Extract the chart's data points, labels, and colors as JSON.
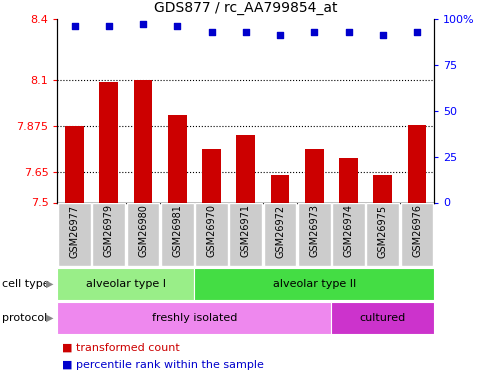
{
  "title": "GDS877 / rc_AA799854_at",
  "samples": [
    "GSM26977",
    "GSM26979",
    "GSM26980",
    "GSM26981",
    "GSM26970",
    "GSM26971",
    "GSM26972",
    "GSM26973",
    "GSM26974",
    "GSM26975",
    "GSM26976"
  ],
  "bar_values": [
    7.875,
    8.09,
    8.1,
    7.93,
    7.76,
    7.83,
    7.635,
    7.76,
    7.72,
    7.635,
    7.88
  ],
  "percentile_values": [
    96,
    96,
    97,
    96,
    93,
    93,
    91,
    93,
    93,
    91,
    93
  ],
  "ymin": 7.5,
  "ymax": 8.4,
  "y_ticks": [
    7.5,
    7.65,
    7.875,
    8.1,
    8.4
  ],
  "y_tick_labels": [
    "7.5",
    "7.65",
    "7.875",
    "8.1",
    "8.4"
  ],
  "y2min": 0,
  "y2max": 100,
  "y2_ticks": [
    0,
    25,
    50,
    75,
    100
  ],
  "y2_tick_labels": [
    "0",
    "25",
    "50",
    "75",
    "100%"
  ],
  "dotted_lines": [
    7.65,
    7.875,
    8.1
  ],
  "bar_color": "#cc0000",
  "scatter_color": "#0000cc",
  "cell_type_groups": [
    {
      "label": "alveolar type I",
      "start": 0,
      "end": 4,
      "color": "#99ee88"
    },
    {
      "label": "alveolar type II",
      "start": 4,
      "end": 11,
      "color": "#44dd44"
    }
  ],
  "protocol_groups": [
    {
      "label": "freshly isolated",
      "start": 0,
      "end": 8,
      "color": "#ee88ee"
    },
    {
      "label": "cultured",
      "start": 8,
      "end": 11,
      "color": "#cc33cc"
    }
  ],
  "legend_items": [
    {
      "label": "transformed count",
      "color": "#cc0000"
    },
    {
      "label": "percentile rank within the sample",
      "color": "#0000cc"
    }
  ],
  "sample_box_color": "#cccccc",
  "background_color": "#ffffff"
}
